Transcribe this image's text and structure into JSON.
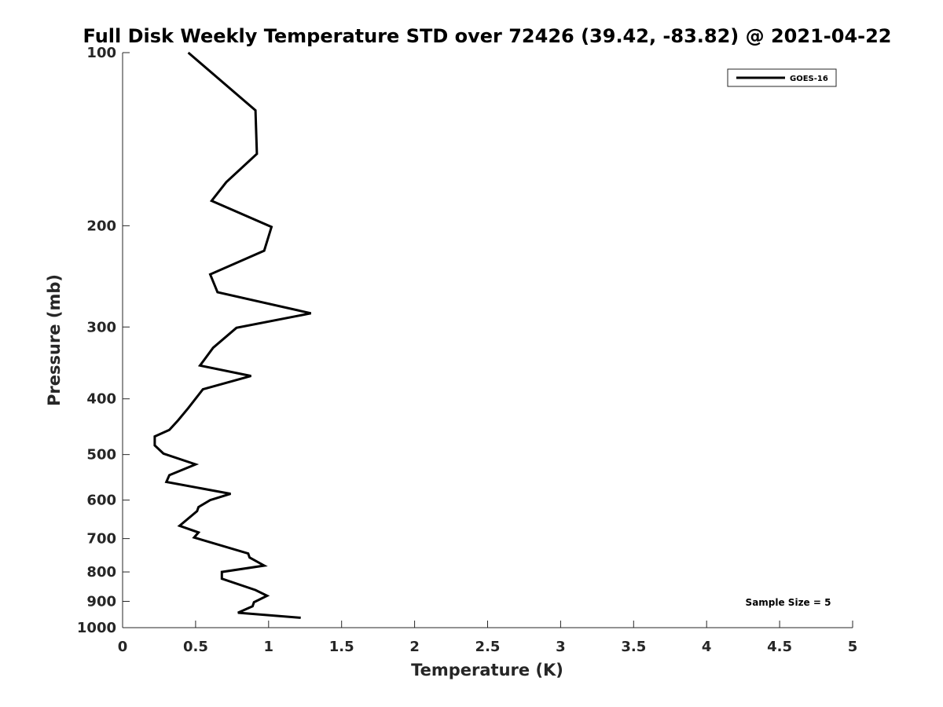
{
  "chart_data": {
    "type": "line",
    "title": "Full Disk Weekly Temperature STD over 72426 (39.42, -83.82) @ 2021-04-22",
    "xlabel": "Temperature (K)",
    "ylabel": "Pressure (mb)",
    "xlim": [
      0,
      5
    ],
    "ylim": [
      100,
      1000
    ],
    "y_scale": "log",
    "y_reversed": true,
    "x_ticks": [
      "0",
      "0.5",
      "1",
      "1.5",
      "2",
      "2.5",
      "3",
      "3.5",
      "4",
      "4.5",
      "5"
    ],
    "y_ticks": [
      "100",
      "200",
      "300",
      "400",
      "500",
      "600",
      "700",
      "800",
      "900",
      "1000"
    ],
    "grid": false,
    "legend_position": "top-right",
    "annotation": "Sample Size = 5",
    "series": [
      {
        "name": "GOES-16",
        "color": "#000000",
        "x": [
          0.45,
          0.91,
          0.92,
          0.71,
          0.61,
          1.02,
          0.97,
          0.6,
          0.65,
          1.29,
          0.78,
          0.62,
          0.53,
          0.88,
          0.55,
          0.45,
          0.38,
          0.32,
          0.22,
          0.22,
          0.28,
          0.5,
          0.32,
          0.3,
          0.74,
          0.6,
          0.52,
          0.51,
          0.39,
          0.52,
          0.49,
          0.86,
          0.87,
          0.97,
          0.68,
          0.68,
          0.91,
          0.99,
          0.9,
          0.89,
          0.79,
          1.22
        ],
        "y": [
          100,
          126,
          150,
          168,
          181,
          201,
          221,
          243,
          261,
          284,
          301,
          326,
          350,
          365,
          385,
          415,
          436,
          453,
          465,
          482,
          498,
          520,
          543,
          558,
          585,
          600,
          617,
          627,
          665,
          683,
          697,
          743,
          755,
          780,
          800,
          822,
          860,
          880,
          903,
          918,
          942,
          961
        ]
      }
    ]
  }
}
